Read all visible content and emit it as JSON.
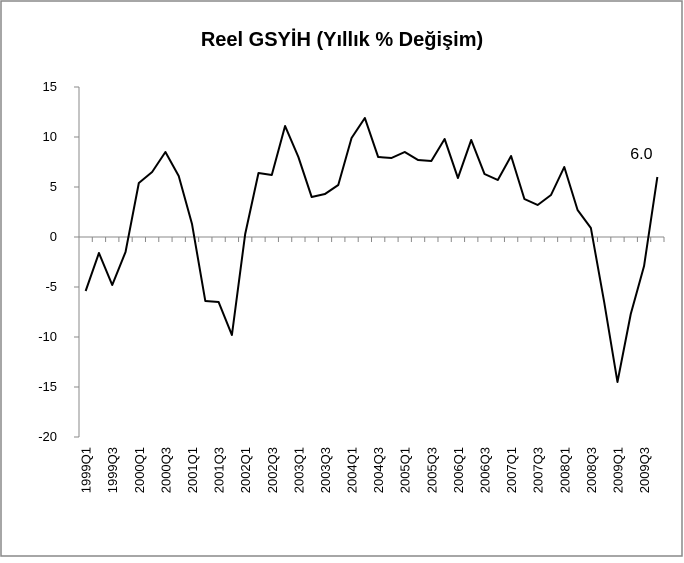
{
  "chart_data": {
    "type": "line",
    "title": "Reel GSYİH (Yıllık % Değişim)",
    "categories": [
      "1999Q1",
      null,
      "1999Q3",
      null,
      "2000Q1",
      null,
      "2000Q3",
      null,
      "2001Q1",
      null,
      "2001Q3",
      null,
      "2002Q1",
      null,
      "2002Q3",
      null,
      "2003Q1",
      null,
      "2003Q3",
      null,
      "2004Q1",
      null,
      "2004Q3",
      null,
      "2005Q1",
      null,
      "2005Q3",
      null,
      "2006Q1",
      null,
      "2006Q3",
      null,
      "2007Q1",
      null,
      "2007Q3",
      null,
      "2008Q1",
      null,
      "2008Q3",
      null,
      "2009Q1",
      null,
      "2009Q3",
      null
    ],
    "values": [
      -5.4,
      -1.6,
      -4.8,
      -1.5,
      5.4,
      6.5,
      8.5,
      6.1,
      1.3,
      -6.4,
      -6.5,
      -9.8,
      0.3,
      6.4,
      6.2,
      11.1,
      8.0,
      4.0,
      4.3,
      5.2,
      9.9,
      11.9,
      8.0,
      7.9,
      8.5,
      7.7,
      7.6,
      9.8,
      5.9,
      9.7,
      6.3,
      5.7,
      8.1,
      3.8,
      3.2,
      4.2,
      7.0,
      2.7,
      0.9,
      -6.5,
      -14.5,
      -7.7,
      -2.9,
      6.0
    ],
    "value_labels": [
      null,
      null,
      null,
      null,
      null,
      null,
      null,
      null,
      null,
      null,
      null,
      null,
      null,
      null,
      null,
      null,
      null,
      null,
      null,
      null,
      null,
      null,
      null,
      null,
      null,
      null,
      null,
      null,
      null,
      null,
      null,
      null,
      null,
      null,
      null,
      null,
      null,
      null,
      null,
      null,
      null,
      null,
      null,
      "6.0"
    ],
    "color": "#000000",
    "ylim": [
      -20,
      15
    ],
    "yticks": [
      -20,
      -15,
      -10,
      -5,
      0,
      5,
      10,
      15
    ]
  }
}
